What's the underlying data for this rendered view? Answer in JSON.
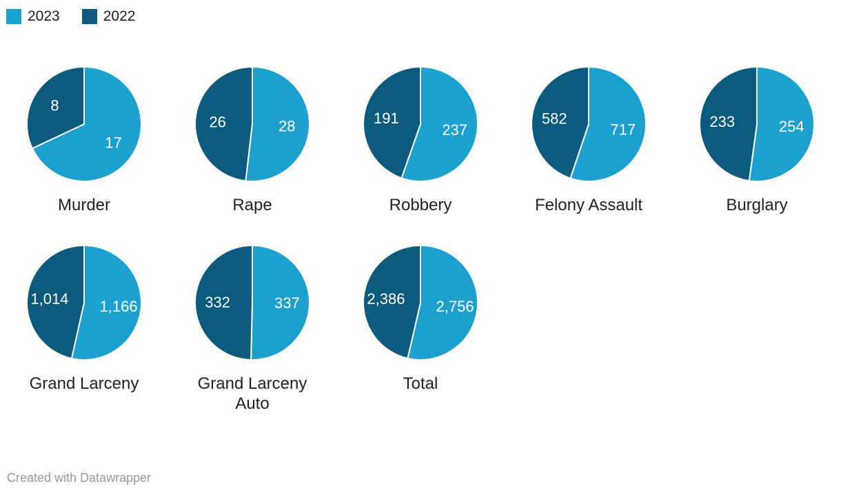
{
  "legend": {
    "items": [
      {
        "label": "2023",
        "color": "#1CA0CE"
      },
      {
        "label": "2022",
        "color": "#0C5A7E"
      }
    ]
  },
  "footer": {
    "text": "Created with Datawrapper"
  },
  "chart_data": {
    "type": "pie",
    "subtype": "small-multiples",
    "columns": 5,
    "series": [
      "2023",
      "2022"
    ],
    "colors": {
      "2023": "#1CA0CE",
      "2022": "#0C5A7E"
    },
    "start_angle_deg": 0,
    "direction": "clockwise, 2023 slice first from 12 o'clock",
    "legend_position": "top-left",
    "charts": [
      {
        "label": "Murder",
        "values": {
          "2023": 17,
          "2022": 8
        },
        "display": {
          "2023": "17",
          "2022": "8"
        }
      },
      {
        "label": "Rape",
        "values": {
          "2023": 28,
          "2022": 26
        },
        "display": {
          "2023": "28",
          "2022": "26"
        }
      },
      {
        "label": "Robbery",
        "values": {
          "2023": 237,
          "2022": 191
        },
        "display": {
          "2023": "237",
          "2022": "191"
        }
      },
      {
        "label": "Felony Assault",
        "values": {
          "2023": 717,
          "2022": 582
        },
        "display": {
          "2023": "717",
          "2022": "582"
        }
      },
      {
        "label": "Burglary",
        "values": {
          "2023": 254,
          "2022": 233
        },
        "display": {
          "2023": "254",
          "2022": "233"
        }
      },
      {
        "label": "Grand Larceny",
        "values": {
          "2023": 1166,
          "2022": 1014
        },
        "display": {
          "2023": "1,166",
          "2022": "1,014"
        }
      },
      {
        "label": "Grand Larceny Auto",
        "values": {
          "2023": 337,
          "2022": 332
        },
        "display": {
          "2023": "337",
          "2022": "332"
        }
      },
      {
        "label": "Total",
        "values": {
          "2023": 2756,
          "2022": 2386
        },
        "display": {
          "2023": "2,756",
          "2022": "2,386"
        }
      }
    ]
  }
}
